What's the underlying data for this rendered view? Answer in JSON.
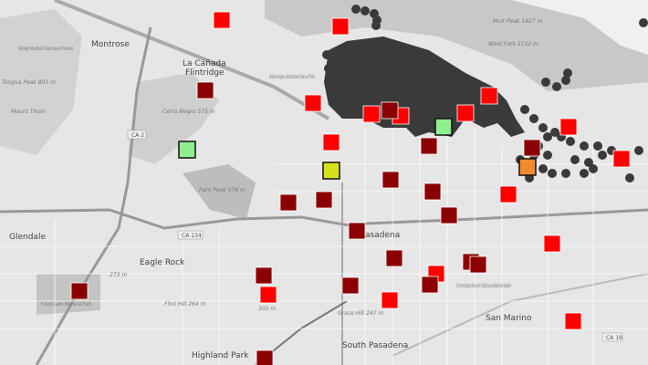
{
  "map": {
    "place_labels": {
      "montrose": "Montrose",
      "la_canada_1": "La Cañada",
      "la_canada_2": "Flintridge",
      "glendale": "Glendale",
      "eagle_rock": "Eagle Rock",
      "pasadena": "Pasadena",
      "san_marino": "San Marino",
      "south_pasadena": "South Pasadena",
      "highland_park": "Highland Park"
    },
    "feature_labels": {
      "tongva": "Tongva Peak 803 m",
      "mount_thom": "Mount Thom",
      "verdugo": "Verdugo Mountains Open Space Preserve",
      "cerro_negro": "Cerro Negro 575 m",
      "fern_peak": "Fern Peak 576 m",
      "muir_peak": "Muir Peak 1427 m",
      "west_fork": "West Fork 1122 m",
      "hahamongna": "Hahamongna Watershed Natural Park",
      "huntington": "The Huntington Library Art Collections and Botanical Gardens",
      "forest_lawn": "Forest Lawn Memorial Park",
      "flint_hill": "Flint Hill 264 m",
      "grace_hill": "Grace Hill 247 m",
      "elev_302": "302 m",
      "elev_273": "273 m"
    },
    "road_labels": {
      "ca2": "CA 2",
      "ca134": "CA 134",
      "ca19": "CA 19"
    },
    "colors": {
      "fire_area": "#3a3a3a",
      "red": "#ff0000",
      "dark_red": "#8b0000",
      "light_green": "#90ee90",
      "yellow": "#d4e21c",
      "orange": "#f28a30",
      "base": "#e4e4e4",
      "mountain": "#c9c9c9"
    }
  }
}
